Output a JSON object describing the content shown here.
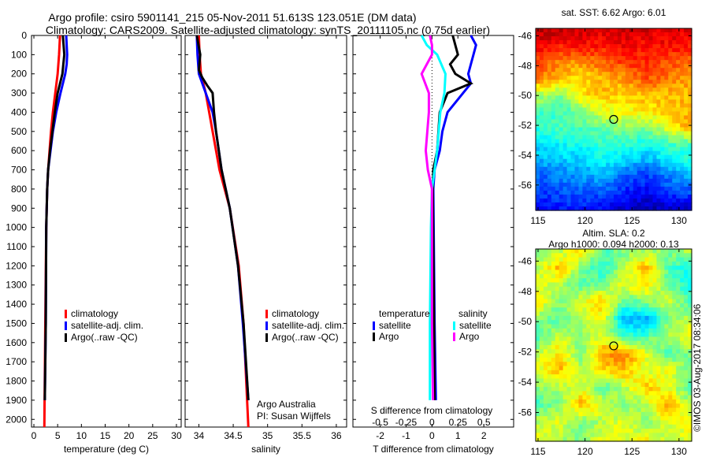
{
  "title_line1": "Argo profile: csiro 5901141_215 05-Nov-2011 51.613S 123.051E (DM data)",
  "title_line2": "Climatology: CARS2009. Satellite-adjusted climatology: synTS_20111105.nc (0.75d earlier)",
  "credit": "©IMOS 03-Aug-2017 08:34:06",
  "colors": {
    "climatology": "#ff0000",
    "satellite": "#0000ff",
    "argo": "#000000",
    "sal_satellite": "#00ffff",
    "sal_argo": "#ff00ff"
  },
  "chart_data": [
    {
      "type": "line",
      "name": "temperature",
      "xlabel": "temperature (deg C)",
      "ylabel": "",
      "xlim": [
        -0.5,
        31
      ],
      "ylim": [
        2040,
        0
      ],
      "xticks": [
        "0",
        "5",
        "10",
        "15",
        "20",
        "25",
        "30"
      ],
      "xtick_values": [
        0,
        5,
        10,
        15,
        20,
        25,
        30
      ],
      "yticks": [
        "0",
        "100",
        "200",
        "300",
        "400",
        "500",
        "600",
        "700",
        "800",
        "900",
        "1000",
        "1100",
        "1200",
        "1300",
        "1400",
        "1500",
        "1600",
        "1700",
        "1800",
        "1900",
        "2000"
      ],
      "legend": [
        "climatology",
        "satellite-adj. clim.",
        "Argo(..raw -QC)"
      ],
      "series": [
        {
          "name": "climatology",
          "color": "#ff0000",
          "depth": [
            0,
            100,
            200,
            300,
            400,
            500,
            600,
            700,
            800,
            1000,
            1500,
            2040
          ],
          "values": [
            5.5,
            5.3,
            5.0,
            4.5,
            4.0,
            3.6,
            3.3,
            3.0,
            2.8,
            2.6,
            2.4,
            2.2
          ]
        },
        {
          "name": "satellite-adj. clim.",
          "color": "#0000ff",
          "depth": [
            0,
            100,
            150,
            200,
            300,
            400,
            500,
            600,
            700,
            800,
            1000,
            1500,
            1900
          ],
          "values": [
            6.8,
            7.0,
            6.9,
            6.6,
            5.6,
            4.7,
            4.0,
            3.5,
            3.0,
            2.8,
            2.6,
            2.5,
            2.3
          ]
        },
        {
          "name": "Argo(..raw -QC)",
          "color": "#000000",
          "depth": [
            0,
            100,
            150,
            200,
            300,
            400,
            500,
            600,
            700,
            800,
            1000,
            1500,
            1900
          ],
          "values": [
            6.1,
            6.4,
            6.2,
            6.0,
            5.0,
            4.4,
            3.9,
            3.4,
            3.0,
            2.8,
            2.6,
            2.5,
            2.3
          ]
        }
      ]
    },
    {
      "type": "line",
      "name": "salinity",
      "xlabel": "salinity",
      "xlim": [
        33.8,
        36.15
      ],
      "ylim": [
        2040,
        0
      ],
      "xticks": [
        "34",
        "34.5",
        "35",
        "35.5",
        "36"
      ],
      "xtick_values": [
        34,
        34.5,
        35,
        35.5,
        36
      ],
      "legend": [
        "climatology",
        "satellite-adj. clim.",
        "Argo(..raw -QC)"
      ],
      "annotations": [
        "Argo Australia",
        "PI: Susan Wijffels"
      ],
      "series": [
        {
          "name": "climatology",
          "color": "#ff0000",
          "depth": [
            0,
            100,
            200,
            300,
            500,
            700,
            900,
            1200,
            1500,
            2040
          ],
          "values": [
            34.0,
            34.01,
            34.03,
            34.1,
            34.2,
            34.3,
            34.45,
            34.58,
            34.65,
            34.72
          ]
        },
        {
          "name": "satellite-adj. clim.",
          "color": "#0000ff",
          "depth": [
            0,
            100,
            200,
            300,
            400,
            500,
            700,
            900,
            1200,
            1500,
            1900
          ],
          "values": [
            33.97,
            33.98,
            34.0,
            34.1,
            34.2,
            34.25,
            34.33,
            34.45,
            34.57,
            34.64,
            34.72
          ]
        },
        {
          "name": "Argo(..raw -QC)",
          "color": "#000000",
          "depth": [
            0,
            100,
            180,
            220,
            260,
            300,
            400,
            500,
            700,
            900,
            1200,
            1500,
            1900
          ],
          "values": [
            33.97,
            34.02,
            34.0,
            34.05,
            34.12,
            34.2,
            34.22,
            34.25,
            34.33,
            34.45,
            34.57,
            34.65,
            34.72
          ]
        }
      ]
    },
    {
      "type": "line",
      "name": "difference",
      "xlabel": "T difference from climatology",
      "x2label": "S difference from climatology",
      "xlim": [
        -3.05,
        3.15
      ],
      "ylim": [
        2040,
        0
      ],
      "xticks": [
        "-2",
        "-1",
        "0",
        "1",
        "2"
      ],
      "xtick_values": [
        -2,
        -1,
        0,
        1,
        2
      ],
      "x2ticks": [
        "-0.5",
        "-0.25",
        "0",
        "0.25",
        "0.5"
      ],
      "x2tick_values": [
        -0.5,
        -0.25,
        0,
        0.25,
        0.5
      ],
      "legend_headers": [
        "temperature",
        "salinity"
      ],
      "legend": [
        "satellite",
        "Argo",
        "satellite",
        "Argo"
      ],
      "series": [
        {
          "name": "T satellite",
          "color": "#0000ff",
          "units": "T",
          "depth": [
            0,
            50,
            100,
            150,
            200,
            250,
            300,
            400,
            500,
            600,
            700,
            800,
            1500,
            1900
          ],
          "values": [
            1.5,
            1.7,
            1.6,
            1.5,
            1.4,
            1.5,
            1.2,
            0.6,
            0.4,
            0.3,
            0.1,
            0.05,
            0.1,
            0.15
          ]
        },
        {
          "name": "T Argo",
          "color": "#000000",
          "units": "T",
          "depth": [
            0,
            50,
            100,
            150,
            200,
            250,
            300,
            400,
            500,
            600,
            700,
            800,
            1500,
            1900
          ],
          "values": [
            0.8,
            0.9,
            1.0,
            0.7,
            0.9,
            1.5,
            0.6,
            0.3,
            0.25,
            0.2,
            0.05,
            0.03,
            0.08,
            0.1
          ]
        },
        {
          "name": "S satellite",
          "color": "#00ffff",
          "units": "S",
          "depth": [
            0,
            50,
            100,
            200,
            300,
            400,
            600,
            800,
            1000,
            1500,
            1900
          ],
          "values": [
            -0.1,
            -0.05,
            0.05,
            0.13,
            0.12,
            0.08,
            0.05,
            0.0,
            -0.01,
            -0.02,
            -0.02
          ]
        },
        {
          "name": "S Argo",
          "color": "#ff00ff",
          "units": "S",
          "depth": [
            0,
            50,
            100,
            200,
            300,
            400,
            600,
            700,
            800,
            1500,
            1900
          ],
          "values": [
            -0.02,
            0.0,
            0.0,
            -0.1,
            -0.03,
            -0.03,
            -0.06,
            -0.04,
            0.0,
            0.0,
            0.01
          ]
        }
      ]
    },
    {
      "type": "heatmap",
      "name": "sst-map",
      "title": "sat. SST: 6.62 Argo: 6.01",
      "xlim": [
        114.75,
        131.35
      ],
      "ylim": [
        -57.7,
        -45.5
      ],
      "xticks": [
        "115",
        "120",
        "125",
        "130"
      ],
      "xtick_values": [
        115,
        120,
        125,
        130
      ],
      "yticks": [
        "-46",
        "-48",
        "-50",
        "-52",
        "-54",
        "-56"
      ],
      "ytick_values": [
        -46,
        -48,
        -50,
        -52,
        -54,
        -56
      ],
      "marker": {
        "lon": 123.05,
        "lat": -51.6
      },
      "grid_normalized": [
        [
          0.95,
          0.93,
          0.92,
          0.9,
          0.93,
          0.92,
          0.9,
          0.91
        ],
        [
          0.88,
          0.85,
          0.87,
          0.85,
          0.88,
          0.86,
          0.87,
          0.85
        ],
        [
          0.8,
          0.75,
          0.72,
          0.78,
          0.82,
          0.84,
          0.8,
          0.78
        ],
        [
          0.75,
          0.7,
          0.65,
          0.7,
          0.72,
          0.8,
          0.75,
          0.72
        ],
        [
          0.55,
          0.5,
          0.66,
          0.68,
          0.66,
          0.7,
          0.68,
          0.7
        ],
        [
          0.45,
          0.43,
          0.5,
          0.6,
          0.62,
          0.64,
          0.68,
          0.7
        ],
        [
          0.42,
          0.45,
          0.45,
          0.48,
          0.52,
          0.5,
          0.6,
          0.72
        ],
        [
          0.35,
          0.38,
          0.4,
          0.42,
          0.42,
          0.4,
          0.45,
          0.45
        ],
        [
          0.3,
          0.32,
          0.33,
          0.38,
          0.35,
          0.3,
          0.35,
          0.4
        ],
        [
          0.22,
          0.25,
          0.28,
          0.3,
          0.22,
          0.18,
          0.25,
          0.3
        ],
        [
          0.18,
          0.2,
          0.2,
          0.22,
          0.15,
          0.12,
          0.18,
          0.2
        ],
        [
          0.12,
          0.15,
          0.15,
          0.12,
          0.08,
          0.05,
          0.06,
          0.08
        ]
      ]
    },
    {
      "type": "heatmap",
      "name": "sla-map",
      "title": "Altim. SLA: 0.2",
      "subtitle": "Argo h1000: 0.094 h2000: 0.13",
      "xlim": [
        114.75,
        131.35
      ],
      "ylim": [
        -57.9,
        -45.2
      ],
      "xticks": [
        "115",
        "120",
        "125",
        "130"
      ],
      "xtick_values": [
        115,
        120,
        125,
        130
      ],
      "yticks": [
        "-46",
        "-48",
        "-50",
        "-52",
        "-54",
        "-56"
      ],
      "ytick_values": [
        -46,
        -48,
        -50,
        -52,
        -54,
        -56
      ],
      "marker": {
        "lon": 123.05,
        "lat": -51.6
      },
      "grid_normalized": [
        [
          0.5,
          0.55,
          0.65,
          0.45,
          0.5,
          0.55,
          0.5,
          0.55
        ],
        [
          0.55,
          0.7,
          0.5,
          0.4,
          0.55,
          0.7,
          0.45,
          0.4
        ],
        [
          0.6,
          0.55,
          0.45,
          0.5,
          0.6,
          0.65,
          0.5,
          0.38
        ],
        [
          0.65,
          0.5,
          0.6,
          0.7,
          0.45,
          0.5,
          0.58,
          0.45
        ],
        [
          0.5,
          0.45,
          0.55,
          0.6,
          0.3,
          0.28,
          0.5,
          0.55
        ],
        [
          0.45,
          0.58,
          0.5,
          0.6,
          0.42,
          0.45,
          0.55,
          0.62
        ],
        [
          0.55,
          0.65,
          0.5,
          0.72,
          0.75,
          0.6,
          0.45,
          0.5
        ],
        [
          0.6,
          0.7,
          0.55,
          0.65,
          0.7,
          0.58,
          0.62,
          0.5
        ],
        [
          0.5,
          0.55,
          0.6,
          0.45,
          0.55,
          0.68,
          0.6,
          0.45
        ],
        [
          0.45,
          0.5,
          0.7,
          0.6,
          0.5,
          0.55,
          0.72,
          0.55
        ],
        [
          0.55,
          0.6,
          0.5,
          0.55,
          0.6,
          0.5,
          0.6,
          0.62
        ],
        [
          0.6,
          0.55,
          0.5,
          0.6,
          0.58,
          0.62,
          0.55,
          0.6
        ]
      ]
    }
  ]
}
